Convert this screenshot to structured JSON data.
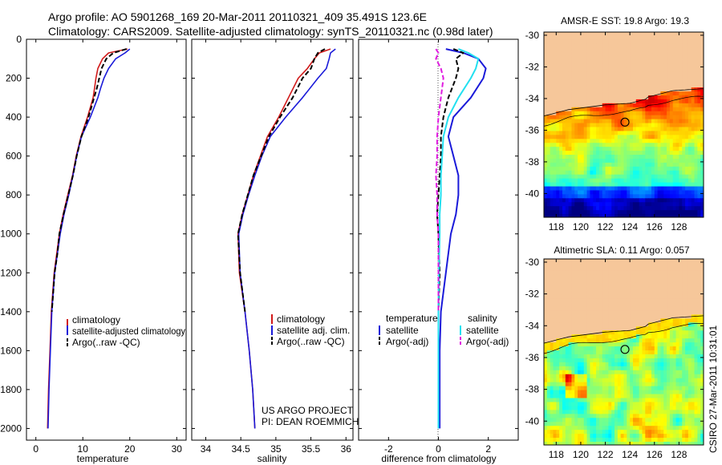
{
  "header": {
    "line1": "Argo profile: AO 5901268_169 20-Mar-2011 20110321_409 35.491S 123.6E",
    "line2": "Climatology: CARS2009. Satellite-adjusted climatology: synTS_20110321.nc (0.98d later)"
  },
  "depth_axis": {
    "ticks": [
      "0",
      "200",
      "400",
      "600",
      "800",
      "1000",
      "1200",
      "1400",
      "1600",
      "1800",
      "2000"
    ],
    "range": [
      0,
      2060
    ]
  },
  "colors": {
    "climatology": "#d11a1a",
    "satellite": "#1a1ad9",
    "argo": "#000000",
    "sal_satellite": "#22e0f0",
    "sal_argo": "#e01ae0",
    "land": "#f6c79a"
  },
  "chart_data": [
    {
      "type": "line",
      "id": "temperature",
      "xlabel": "temperature",
      "xlim": [
        -2,
        32
      ],
      "ylim": [
        0,
        2060
      ],
      "xticks": [
        "0",
        "10",
        "20",
        "30"
      ],
      "legend": [
        "climatology",
        "satellite-adjusted climatology",
        "Argo(..raw -QC)"
      ],
      "series": [
        {
          "name": "climatology",
          "depth": [
            50,
            70,
            100,
            150,
            200,
            250,
            300,
            400,
            500,
            600,
            700,
            800,
            900,
            1000,
            1200,
            1400,
            1600,
            1800,
            2000
          ],
          "values": [
            19.5,
            15.5,
            14.2,
            13.2,
            12.8,
            12.5,
            12.2,
            11.0,
            9.6,
            8.6,
            7.8,
            6.8,
            5.8,
            5.0,
            3.9,
            3.3,
            3.0,
            2.7,
            2.5
          ]
        },
        {
          "name": "satellite",
          "depth": [
            50,
            70,
            100,
            150,
            200,
            250,
            300,
            400,
            500,
            600,
            700,
            800,
            900,
            1000,
            1200,
            1400,
            1600,
            1800,
            2000
          ],
          "values": [
            20.0,
            19.0,
            17.0,
            15.5,
            14.5,
            13.8,
            13.2,
            11.6,
            9.7,
            8.7,
            7.9,
            7.0,
            6.0,
            5.2,
            4.0,
            3.4,
            3.1,
            2.8,
            2.6
          ]
        },
        {
          "name": "argo",
          "depth": [
            50,
            70,
            100,
            150,
            200,
            250,
            300,
            400,
            500,
            600,
            700,
            800,
            900,
            1000,
            1100,
            1200,
            1400
          ],
          "values": [
            19.3,
            16.5,
            15.0,
            14.0,
            13.5,
            13.0,
            12.4,
            11.2,
            9.7,
            8.7,
            7.9,
            6.9,
            5.9,
            5.0,
            4.6,
            4.0,
            3.4
          ]
        }
      ]
    },
    {
      "type": "line",
      "id": "salinity",
      "xlabel": "salinity",
      "xlim": [
        33.8,
        36.1
      ],
      "ylim": [
        0,
        2060
      ],
      "xticks": [
        "34",
        "34.5",
        "35",
        "35.5",
        "36"
      ],
      "legend": [
        "climatology",
        "satellite adj. clim.",
        "Argo(..raw -QC)"
      ],
      "credit": [
        "US ARGO PROJECT",
        "PI: DEAN ROEMMICH"
      ],
      "series": [
        {
          "name": "climatology",
          "depth": [
            50,
            70,
            100,
            150,
            200,
            300,
            400,
            500,
            600,
            700,
            800,
            900,
            1000,
            1200,
            1400,
            1600,
            1800,
            2000
          ],
          "values": [
            35.78,
            35.62,
            35.55,
            35.45,
            35.32,
            35.18,
            35.04,
            34.88,
            34.78,
            34.68,
            34.6,
            34.52,
            34.46,
            34.48,
            34.56,
            34.62,
            34.67,
            34.7
          ]
        },
        {
          "name": "satellite",
          "depth": [
            50,
            70,
            100,
            150,
            200,
            300,
            400,
            500,
            600,
            700,
            800,
            900,
            1000,
            1200,
            1400,
            1600,
            1800,
            2000
          ],
          "values": [
            35.85,
            35.78,
            35.76,
            35.72,
            35.6,
            35.38,
            35.14,
            34.92,
            34.8,
            34.7,
            34.61,
            34.53,
            34.47,
            34.49,
            34.56,
            34.62,
            34.67,
            34.7
          ]
        },
        {
          "name": "argo",
          "depth": [
            50,
            70,
            100,
            150,
            200,
            300,
            400,
            500,
            600,
            700,
            800,
            900,
            1000,
            1200,
            1400
          ],
          "values": [
            35.7,
            35.6,
            35.55,
            35.5,
            35.38,
            35.24,
            35.06,
            34.9,
            34.79,
            34.68,
            34.6,
            34.52,
            34.46,
            34.49,
            34.56
          ]
        }
      ]
    },
    {
      "type": "line",
      "id": "difference",
      "xlabel": "difference from climatology",
      "xlim": [
        -3.2,
        3.2
      ],
      "ylim": [
        0,
        2060
      ],
      "xticks": [
        "-2",
        "0",
        "2"
      ],
      "legend_temperature": [
        "temperature",
        "satellite",
        "Argo(-adj)"
      ],
      "legend_salinity": [
        "salinity",
        "satellite",
        "Argo(-adj)"
      ],
      "series": [
        {
          "name": "temperature satellite",
          "depth": [
            50,
            70,
            100,
            150,
            200,
            300,
            400,
            500,
            600,
            700,
            800,
            900,
            1000,
            1200,
            1400,
            1600,
            1800,
            2000
          ],
          "values": [
            0.3,
            1.0,
            1.6,
            1.9,
            1.8,
            1.3,
            0.6,
            0.4,
            0.6,
            0.8,
            0.8,
            0.7,
            0.5,
            0.3,
            0.1,
            0.05,
            0.05,
            0.05
          ]
        },
        {
          "name": "temperature argo",
          "depth": [
            50,
            70,
            100,
            150,
            200,
            300,
            400,
            500,
            600,
            700,
            800,
            900,
            1000,
            1200,
            1400
          ],
          "values": [
            0.6,
            1.0,
            0.7,
            0.8,
            0.7,
            0.4,
            0.2,
            0.1,
            0.1,
            0.05,
            0.0,
            -0.05,
            0.0,
            0.05,
            0.0
          ]
        },
        {
          "name": "salinity satellite",
          "depth": [
            50,
            70,
            100,
            150,
            200,
            300,
            400,
            500,
            600,
            700,
            800,
            900,
            1000,
            1200,
            1400,
            1600,
            1800,
            2000
          ],
          "values": [
            0.8,
            1.2,
            1.6,
            1.5,
            1.3,
            0.8,
            0.4,
            0.2,
            0.15,
            0.1,
            0.1,
            0.05,
            0.05,
            0.02,
            0.0,
            0.0,
            0.0,
            0.0
          ]
        },
        {
          "name": "salinity argo",
          "depth": [
            50,
            70,
            100,
            150,
            200,
            300,
            400,
            500,
            600,
            700,
            800,
            900,
            1000,
            1200,
            1400
          ],
          "values": [
            -0.1,
            0.0,
            -0.1,
            0.1,
            0.2,
            0.1,
            0.0,
            -0.05,
            -0.05,
            -0.1,
            -0.05,
            -0.05,
            0.0,
            0.0,
            0.0
          ]
        }
      ]
    },
    {
      "type": "heatmap",
      "id": "sst_map",
      "title": "AMSR-E SST: 19.8  Argo: 19.3",
      "xlim": [
        117,
        130
      ],
      "ylim": [
        -41.5,
        -29.8
      ],
      "xticks": [
        "118",
        "120",
        "122",
        "124",
        "126",
        "128"
      ],
      "yticks": [
        "-30",
        "-32",
        "-34",
        "-36",
        "-38",
        "-40"
      ],
      "profile_location": {
        "lon": 123.6,
        "lat": -35.491
      }
    },
    {
      "type": "heatmap",
      "id": "sla_map",
      "title": "Altimetric SLA: 0.11  Argo: 0.057",
      "xlim": [
        117,
        130
      ],
      "ylim": [
        -41.5,
        -29.8
      ],
      "xticks": [
        "118",
        "120",
        "122",
        "124",
        "126",
        "128"
      ],
      "yticks": [
        "-30",
        "-32",
        "-34",
        "-36",
        "-38",
        "-40"
      ],
      "profile_location": {
        "lon": 123.6,
        "lat": -35.491
      }
    }
  ],
  "stamp": "CSIRO 27-Mar-2011 10:31:01"
}
